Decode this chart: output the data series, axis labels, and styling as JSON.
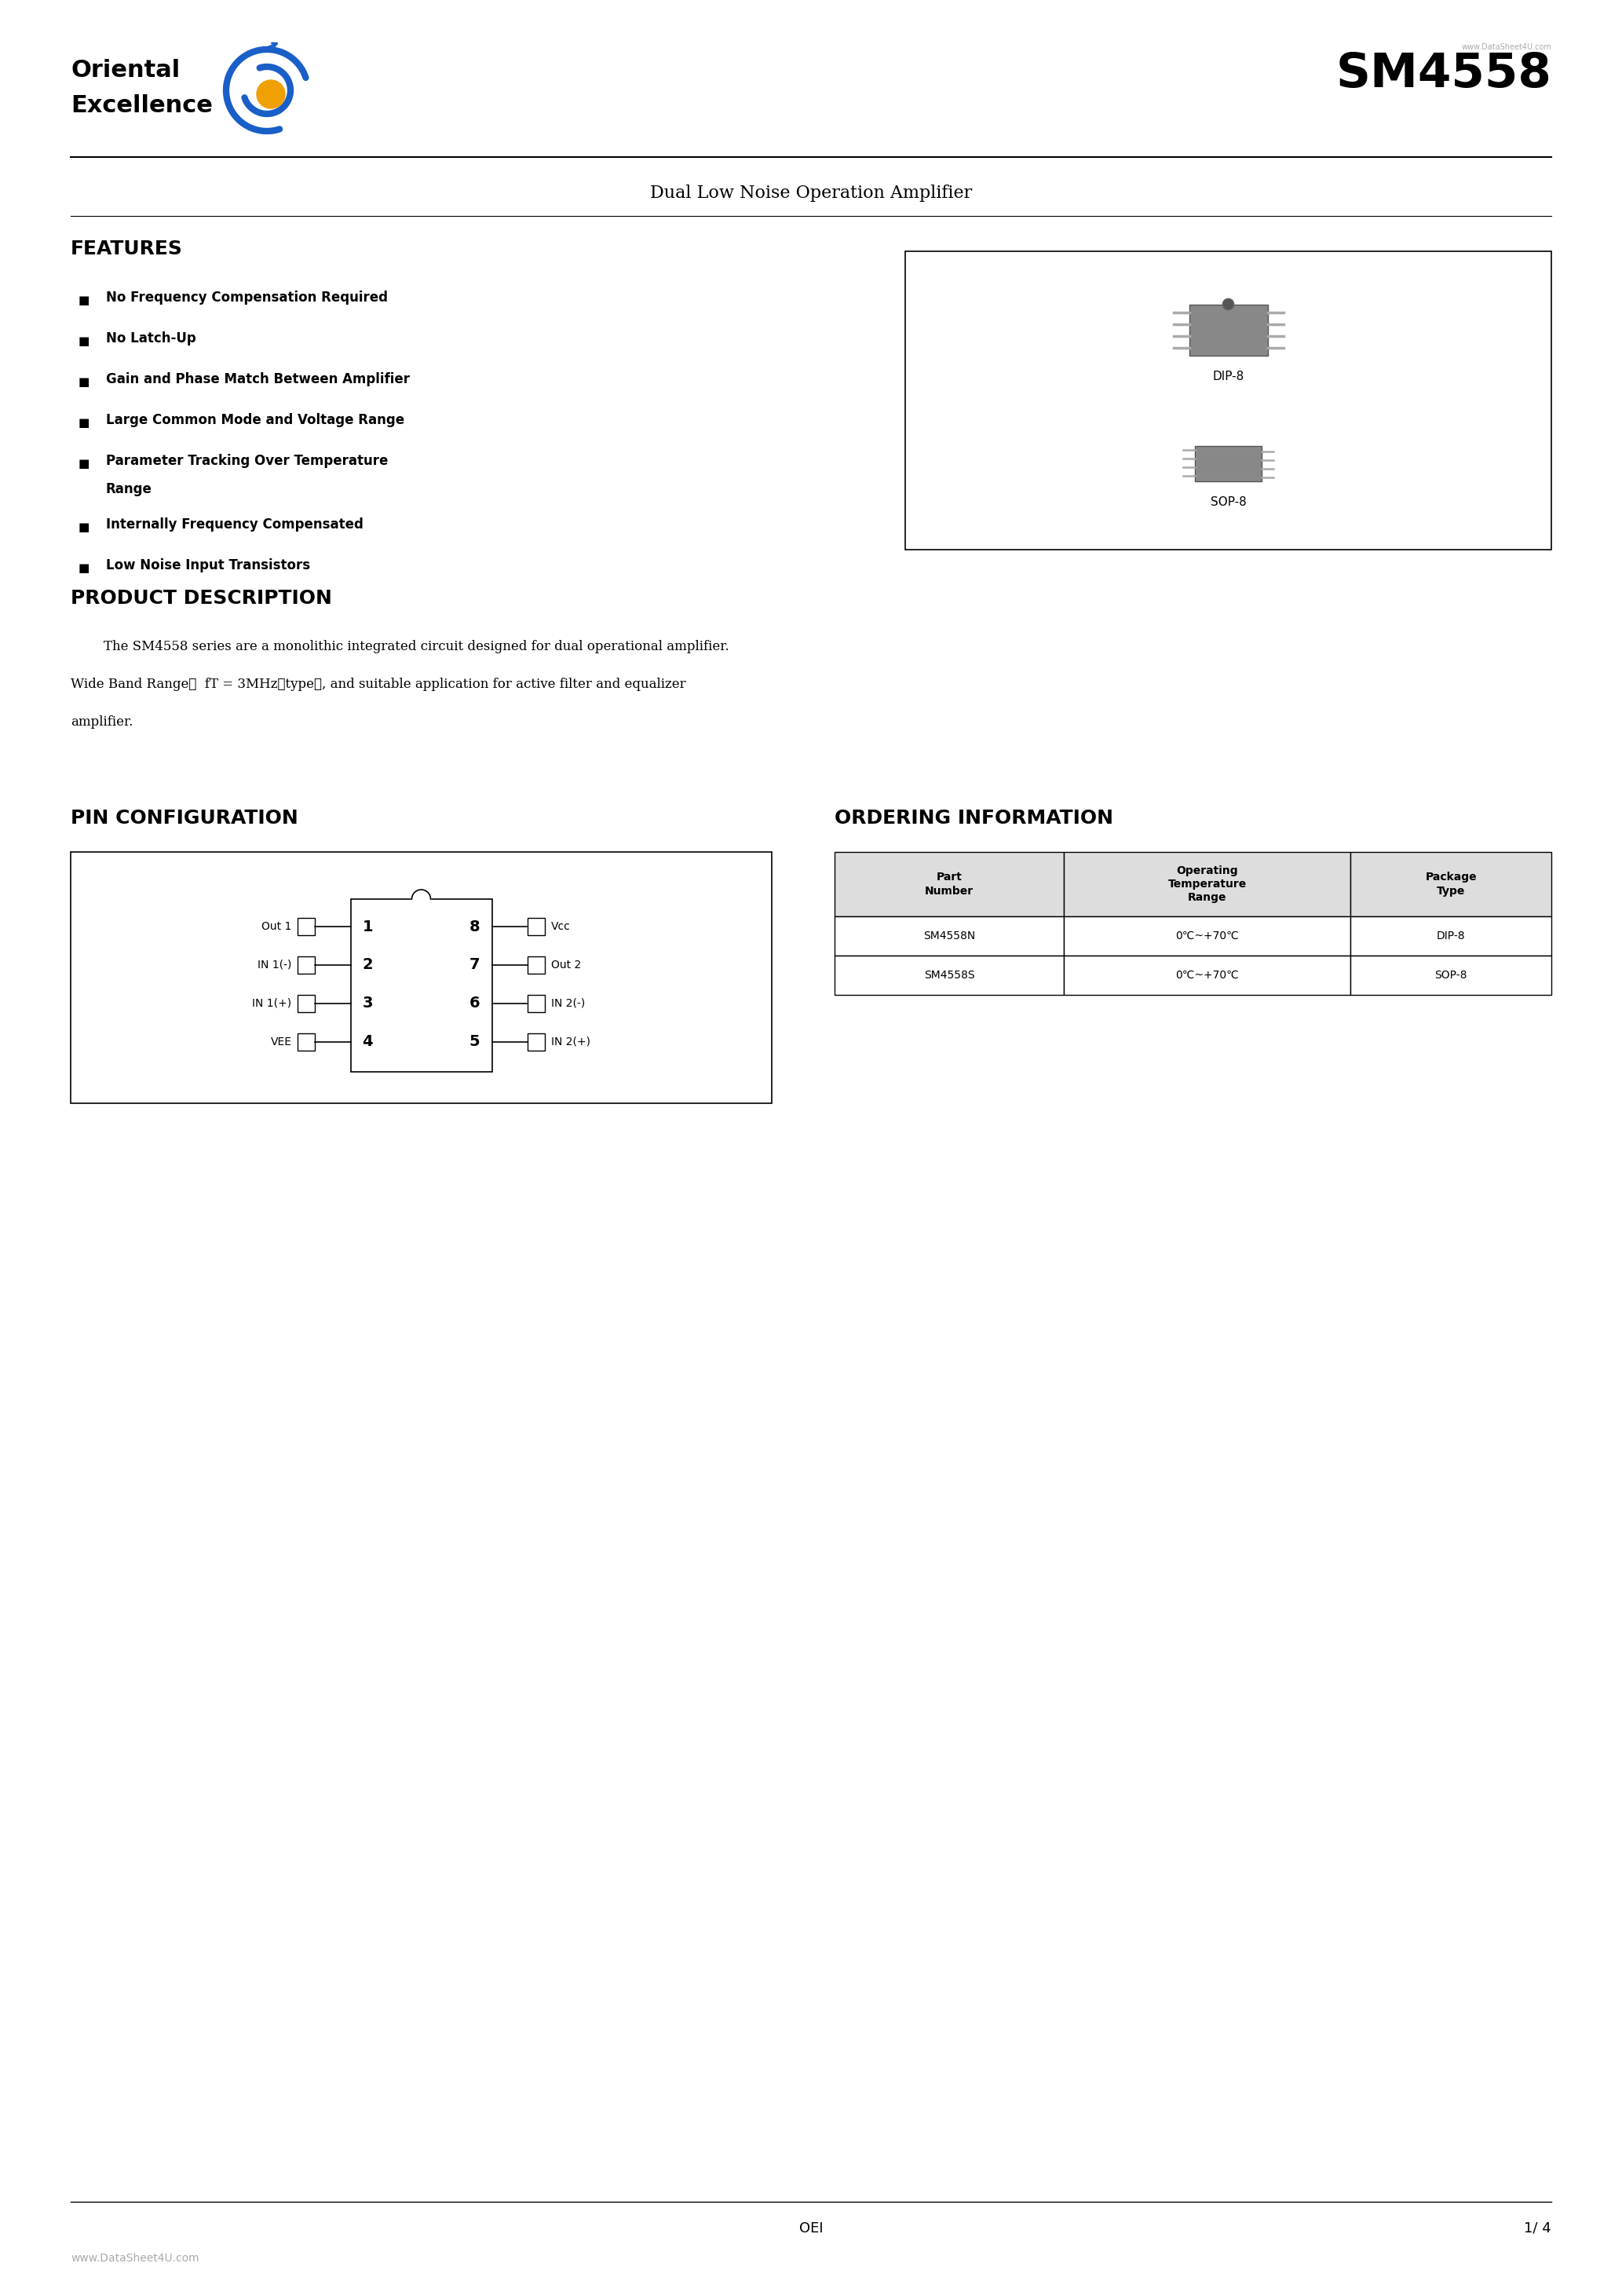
{
  "page_width": 20.66,
  "page_height": 29.24,
  "bg_color": "#ffffff",
  "company_name_line1": "Oriental",
  "company_name_line2": "Excellence",
  "website_small": "www.DataSheet4U.com",
  "part_number": "SM4558",
  "subtitle": "Dual Low Noise Operation Amplifier",
  "features_title": "FEATURES",
  "features": [
    "No Frequency Compensation Required",
    "No Latch-Up",
    "Gain and Phase Match Between Amplifier",
    "Large Common Mode and Voltage Range",
    "Parameter Tracking Over Temperature\nRange",
    "Internally Frequency Compensated",
    "Low Noise Input Transistors"
  ],
  "dip_label": "DIP-8",
  "sop_label": "SOP-8",
  "product_desc_title": "PRODUCT DESCRIPTION",
  "product_desc_text": "        The SM4558 series are a monolithic integrated circuit designed for dual operational amplifier.\nWide Band Range：  fT = 3MHz（type）, and suitable application for active filter and equalizer\namplifier.",
  "pin_config_title": "PIN CONFIGURATION",
  "ordering_title": "ORDERING INFORMATION",
  "pin_labels_left": [
    "Out 1",
    "IN 1(-)",
    "IN 1(+)",
    "VEE"
  ],
  "pin_numbers_left": [
    "1",
    "2",
    "3",
    "4"
  ],
  "pin_numbers_right": [
    "8",
    "7",
    "6",
    "5"
  ],
  "pin_labels_right": [
    "Vcc",
    "Out 2",
    "IN 2(-)",
    "IN 2(+)"
  ],
  "ordering_headers": [
    "Part\nNumber",
    "Operating\nTemperature\nRange",
    "Package\nType"
  ],
  "ordering_rows": [
    [
      "SM4558N",
      "0℃~+70℃",
      "DIP-8"
    ],
    [
      "SM4558S",
      "0℃~+70℃",
      "SOP-8"
    ]
  ],
  "footer_center": "OEI",
  "footer_right": "1/ 4",
  "footer_bottom": "www.DataSheet4U.com",
  "line_color": "#000000",
  "table_border_color": "#000000",
  "header_bg": "#e8e8e8",
  "text_color": "#000000",
  "gray_color": "#888888"
}
